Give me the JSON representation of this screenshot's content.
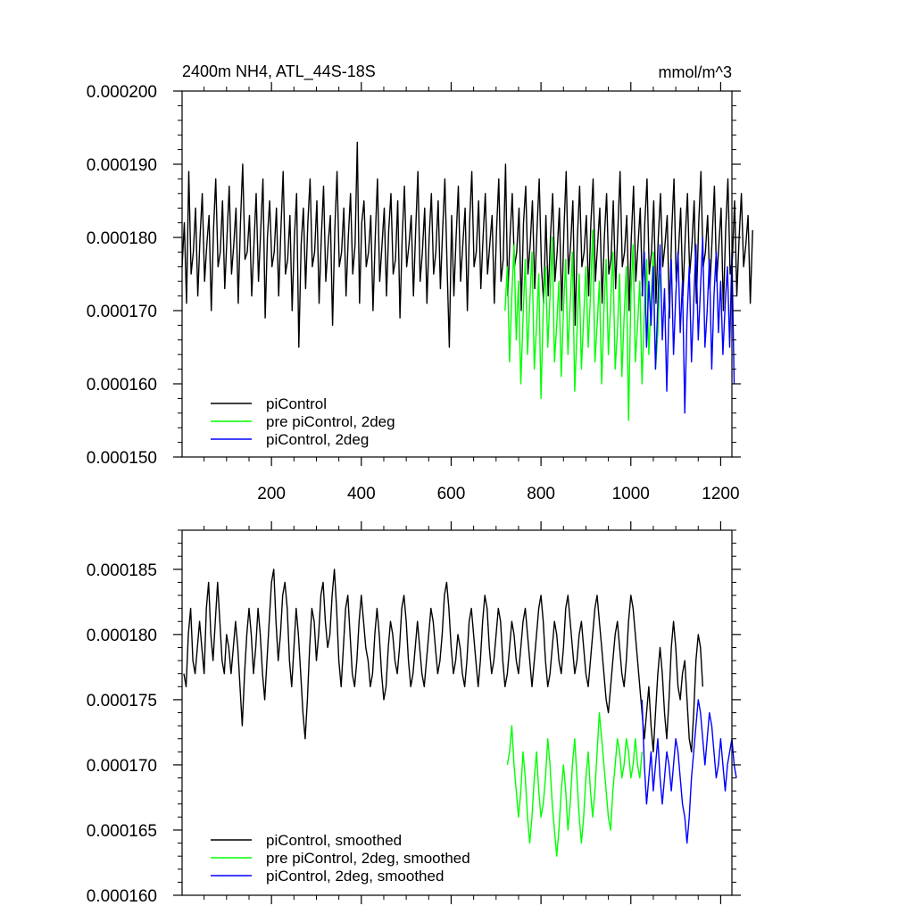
{
  "chart_data": [
    {
      "type": "line",
      "title_left": "2400m NH4, ATL_44S-18S",
      "title_right": "mmol/m^3",
      "xlim": [
        1,
        1225
      ],
      "ylim": [
        0.00015,
        0.0002
      ],
      "x_ticks": [
        200,
        400,
        600,
        800,
        1000,
        1200
      ],
      "x_tick_labels": [
        "200",
        "400",
        "600",
        "800",
        "1000",
        "1200"
      ],
      "y_ticks": [
        0.00015,
        0.00016,
        0.00017,
        0.00018,
        0.00019,
        0.0002
      ],
      "y_tick_labels": [
        "0.000150",
        "0.000160",
        "0.000170",
        "0.000180",
        "0.000190",
        "0.000200"
      ],
      "grid": false,
      "legend_position": "bottom-left",
      "series": [
        {
          "name": "piControl",
          "color": "#000000",
          "x_start": 1,
          "x_step": 5,
          "values": [
            0.000176,
            0.000182,
            0.000171,
            0.000189,
            0.000175,
            0.000178,
            0.000184,
            0.000172,
            0.00018,
            0.000186,
            0.000174,
            0.000179,
            0.000183,
            0.00017,
            0.000181,
            0.000188,
            0.000176,
            0.000178,
            0.000185,
            0.000173,
            0.00018,
            0.000187,
            0.000175,
            0.000179,
            0.000184,
            0.000171,
            0.000182,
            0.00019,
            0.000177,
            0.000178,
            0.000183,
            0.000172,
            0.000179,
            0.000186,
            0.000174,
            0.000181,
            0.000188,
            0.000169,
            0.00018,
            0.000185,
            0.000176,
            0.000178,
            0.000184,
            0.000172,
            0.000181,
            0.000189,
            0.000175,
            0.000177,
            0.000183,
            0.00017,
            0.00018,
            0.000186,
            0.000165,
            0.000179,
            0.000184,
            0.000173,
            0.000182,
            0.000188,
            0.000176,
            0.000178,
            0.000185,
            0.000171,
            0.00018,
            0.000187,
            0.000174,
            0.000179,
            0.000183,
            0.000168,
            0.000181,
            0.000189,
            0.000176,
            0.000178,
            0.000184,
            0.000172,
            0.00018,
            0.000186,
            0.000175,
            0.000179,
            0.000193,
            0.000171,
            0.000182,
            0.000185,
            0.000176,
            0.000178,
            0.000183,
            0.00017,
            0.00018,
            0.000188,
            0.000174,
            0.000179,
            0.000184,
            0.000172,
            0.000181,
            0.000186,
            0.000175,
            0.000177,
            0.000185,
            0.000169,
            0.00018,
            0.000187,
            0.000176,
            0.000179,
            0.000183,
            0.000172,
            0.000181,
            0.000189,
            0.000174,
            0.000178,
            0.000184,
            0.000171,
            0.00018,
            0.000186,
            0.000175,
            0.000178,
            0.000185,
            0.000173,
            0.000181,
            0.000188,
            0.000176,
            0.000165,
            0.000183,
            0.000172,
            0.00018,
            0.000187,
            0.000174,
            0.000179,
            0.000184,
            0.00017,
            0.000182,
            0.000189,
            0.000176,
            0.000178,
            0.000185,
            0.000173,
            0.00018,
            0.000186,
            0.000175,
            0.000179,
            0.000183,
            0.000171,
            0.000181,
            0.000188,
            0.000174,
            0.000177,
            0.00019,
            0.000172,
            0.00018,
            0.000186,
            0.000176,
            0.000178,
            0.000184,
            0.00017,
            0.000182,
            0.000187,
            0.000175,
            0.000179,
            0.000185,
            0.000173,
            0.000181,
            0.000188,
            0.000176,
            0.000171,
            0.000183,
            0.000172,
            0.00018,
            0.000186,
            0.000174,
            0.000178,
            0.000184,
            0.00017,
            0.000181,
            0.000189,
            0.000175,
            0.000179,
            0.000185,
            0.000168,
            0.00018,
            0.000187,
            0.000176,
            0.000178,
            0.000183,
            0.000172,
            0.000182,
            0.000188,
            0.000174,
            0.000179,
            0.000184,
            0.000171,
            0.00018,
            0.000186,
            0.000175,
            0.000177,
            0.000185,
            0.000173,
            0.000181,
            0.000189,
            0.000176,
            0.000178,
            0.000183,
            0.00017,
            0.00018,
            0.000187,
            0.000174,
            0.000179,
            0.000184,
            0.000172,
            0.000182,
            0.000188,
            0.000175,
            0.000178,
            0.000185,
            0.000171,
            0.00018,
            0.000186,
            0.000176,
            0.000179,
            0.000183,
            0.000169,
            0.000181,
            0.000188,
            0.000174,
            0.000178,
            0.000184,
            0.000172,
            0.00018,
            0.000186,
            0.000175,
            0.000179,
            0.000185,
            0.000171,
            0.000182,
            0.000189,
            0.000176,
            0.000178,
            0.000183,
            0.000173,
            0.00018,
            0.000187,
            0.000174,
            0.000179,
            0.000184,
            0.00017,
            0.000181,
            0.000188,
            0.000175,
            0.000177,
            0.000185,
            0.000172,
            0.00018,
            0.000186,
            0.000176,
            0.000179,
            0.000183,
            0.000171,
            0.000181
          ]
        },
        {
          "name": "pre piControl, 2deg",
          "color": "#00ff00",
          "x_start": 720,
          "x_step": 5,
          "values": [
            0.00017,
            0.000176,
            0.000163,
            0.000172,
            0.000179,
            0.000166,
            0.000174,
            0.00016,
            0.000169,
            0.000177,
            0.000164,
            0.000171,
            0.000178,
            0.000162,
            0.000168,
            0.000175,
            0.000158,
            0.00017,
            0.000176,
            0.000165,
            0.000172,
            0.00018,
            0.000163,
            0.000168,
            0.000174,
            0.000161,
            0.00017,
            0.000177,
            0.000164,
            0.000171,
            0.000178,
            0.000159,
            0.000167,
            0.000175,
            0.000162,
            0.000169,
            0.000176,
            0.000165,
            0.000172,
            0.000181,
            0.000163,
            0.000168,
            0.000174,
            0.00016,
            0.00017,
            0.000177,
            0.000164,
            0.000171,
            0.000178,
            0.000162,
            0.000167,
            0.000175,
            0.000161,
            0.000169,
            0.000176,
            0.000155,
            0.000172,
            0.000179,
            0.000163,
            0.000168,
            0.000174,
            0.00016,
            0.00017,
            0.000177,
            0.000164,
            0.000171,
            0.000178,
            0.000162,
            0.000167,
            0.000175
          ]
        },
        {
          "name": "piControl, 2deg",
          "color": "#0000ff",
          "x_start": 1025,
          "x_step": 5,
          "values": [
            0.000172,
            0.000178,
            0.000165,
            0.000174,
            0.000168,
            0.000176,
            0.000162,
            0.000171,
            0.000179,
            0.000166,
            0.000173,
            0.000159,
            0.00017,
            0.000177,
            0.000164,
            0.000172,
            0.000178,
            0.000167,
            0.000174,
            0.000156,
            0.000169,
            0.000176,
            0.000163,
            0.000171,
            0.000179,
            0.000166,
            0.000173,
            0.00018,
            0.000165,
            0.00017,
            0.000177,
            0.000162,
            0.000172,
            0.000178,
            0.000167,
            0.000174,
            0.000164,
            0.000171,
            0.000176,
            0.000165,
            0.000178,
            0.00016
          ]
        }
      ]
    },
    {
      "type": "line",
      "xlim": [
        1,
        1225
      ],
      "ylim": [
        0.00016,
        0.000188
      ],
      "x_ticks": [
        200,
        400,
        600,
        800,
        1000,
        1200
      ],
      "y_ticks": [
        0.00016,
        0.000165,
        0.00017,
        0.000175,
        0.00018,
        0.000185
      ],
      "y_tick_labels": [
        "0.000160",
        "0.000165",
        "0.000170",
        "0.000175",
        "0.000180",
        "0.000185"
      ],
      "grid": false,
      "legend_position": "bottom-left",
      "series": [
        {
          "name": "piControl, smoothed",
          "color": "#000000",
          "x_start": 5,
          "x_step": 5,
          "values": [
            0.000177,
            0.000176,
            0.00018,
            0.000182,
            0.000178,
            0.000177,
            0.000179,
            0.000181,
            0.000179,
            0.000177,
            0.000182,
            0.000184,
            0.00018,
            0.000178,
            0.000181,
            0.000184,
            0.000181,
            0.000178,
            0.000177,
            0.00018,
            0.000179,
            0.000177,
            0.000179,
            0.000181,
            0.000179,
            0.000176,
            0.000173,
            0.000177,
            0.00018,
            0.000182,
            0.00018,
            0.000177,
            0.000179,
            0.000182,
            0.00018,
            0.000177,
            0.000175,
            0.000178,
            0.000181,
            0.000184,
            0.000185,
            0.000181,
            0.000178,
            0.00018,
            0.000183,
            0.000184,
            0.000182,
            0.000178,
            0.000176,
            0.000179,
            0.000182,
            0.00018,
            0.000177,
            0.000174,
            0.000172,
            0.000175,
            0.000179,
            0.000182,
            0.000181,
            0.000178,
            0.00018,
            0.000183,
            0.000184,
            0.000181,
            0.000179,
            0.00018,
            0.000183,
            0.000185,
            0.000182,
            0.000178,
            0.000176,
            0.000179,
            0.000182,
            0.000183,
            0.00018,
            0.000177,
            0.000176,
            0.000178,
            0.000181,
            0.000183,
            0.000181,
            0.000179,
            0.000178,
            0.000176,
            0.000177,
            0.00018,
            0.000182,
            0.00018,
            0.000177,
            0.000175,
            0.000176,
            0.000179,
            0.000181,
            0.00018,
            0.000178,
            0.000177,
            0.000179,
            0.000182,
            0.000183,
            0.000181,
            0.000178,
            0.000176,
            0.000177,
            0.000179,
            0.000181,
            0.000179,
            0.000177,
            0.000176,
            0.000178,
            0.00018,
            0.000182,
            0.000181,
            0.000179,
            0.000177,
            0.000178,
            0.00018,
            0.000183,
            0.000184,
            0.000182,
            0.000179,
            0.000177,
            0.000178,
            0.00018,
            0.000179,
            0.000177,
            0.000176,
            0.000178,
            0.000181,
            0.000182,
            0.00018,
            0.000178,
            0.000176,
            0.000178,
            0.000181,
            0.000183,
            0.000182,
            0.000179,
            0.000177,
            0.000178,
            0.00018,
            0.000182,
            0.000181,
            0.000178,
            0.000176,
            0.000177,
            0.000179,
            0.000181,
            0.00018,
            0.000178,
            0.000177,
            0.000179,
            0.000181,
            0.000182,
            0.00018,
            0.000178,
            0.000176,
            0.000178,
            0.00018,
            0.000182,
            0.000183,
            0.000181,
            0.000178,
            0.000176,
            0.000177,
            0.000179,
            0.000181,
            0.00018,
            0.000178,
            0.000177,
            0.000179,
            0.000182,
            0.000183,
            0.000181,
            0.000179,
            0.000177,
            0.000178,
            0.00018,
            0.000181,
            0.000179,
            0.000177,
            0.000176,
            0.000178,
            0.00018,
            0.000182,
            0.000183,
            0.000181,
            0.000179,
            0.000177,
            0.000175,
            0.000174,
            0.000176,
            0.000178,
            0.00018,
            0.000181,
            0.000179,
            0.000177,
            0.000176,
            0.000178,
            0.000181,
            0.000183,
            0.000182,
            0.00018,
            0.000178,
            0.000176,
            0.000174,
            0.000172,
            0.000174,
            0.000176,
            0.000173,
            0.000171,
            0.000174,
            0.000177,
            0.000179,
            0.000177,
            0.000174,
            0.000172,
            0.000175,
            0.000179,
            0.000181,
            0.000179,
            0.000176,
            0.000175,
            0.000177,
            0.000178,
            0.000175,
            0.000172,
            0.000171,
            0.000174,
            0.000178,
            0.00018,
            0.000179,
            0.000176
          ]
        },
        {
          "name": "pre piControl, 2deg, smoothed",
          "color": "#00ff00",
          "x_start": 725,
          "x_step": 5,
          "values": [
            0.00017,
            0.000171,
            0.000173,
            0.00017,
            0.000168,
            0.000166,
            0.000168,
            0.000171,
            0.000169,
            0.000166,
            0.000164,
            0.000166,
            0.000169,
            0.000171,
            0.000168,
            0.000166,
            0.000167,
            0.000169,
            0.000172,
            0.00017,
            0.000167,
            0.000165,
            0.000163,
            0.000165,
            0.000168,
            0.00017,
            0.000168,
            0.000165,
            0.000167,
            0.00017,
            0.000172,
            0.000169,
            0.000166,
            0.000164,
            0.000166,
            0.000169,
            0.000171,
            0.000168,
            0.000166,
            0.000168,
            0.000171,
            0.000174,
            0.000172,
            0.00017,
            0.000168,
            0.000166,
            0.000165,
            0.000168,
            0.00017,
            0.000172,
            0.000171,
            0.000169,
            0.00017,
            0.000172,
            0.000171,
            0.000169,
            0.00017,
            0.000172,
            0.00017,
            0.000169,
            0.000171
          ]
        },
        {
          "name": "piControl, 2deg, smoothed",
          "color": "#0000ff",
          "x_start": 1025,
          "x_step": 5,
          "values": [
            0.000175,
            0.00017,
            0.000167,
            0.000169,
            0.000171,
            0.000168,
            0.00017,
            0.000172,
            0.000169,
            0.000167,
            0.000169,
            0.000171,
            0.00017,
            0.000168,
            0.00017,
            0.000172,
            0.000171,
            0.000169,
            0.000167,
            0.000166,
            0.000164,
            0.000166,
            0.000169,
            0.000171,
            0.000173,
            0.000175,
            0.000174,
            0.000172,
            0.00017,
            0.000172,
            0.000174,
            0.000173,
            0.000171,
            0.000169,
            0.00017,
            0.000172,
            0.00017,
            0.000168,
            0.00017,
            0.000171,
            0.000172,
            0.00017,
            0.000169
          ]
        }
      ]
    }
  ]
}
